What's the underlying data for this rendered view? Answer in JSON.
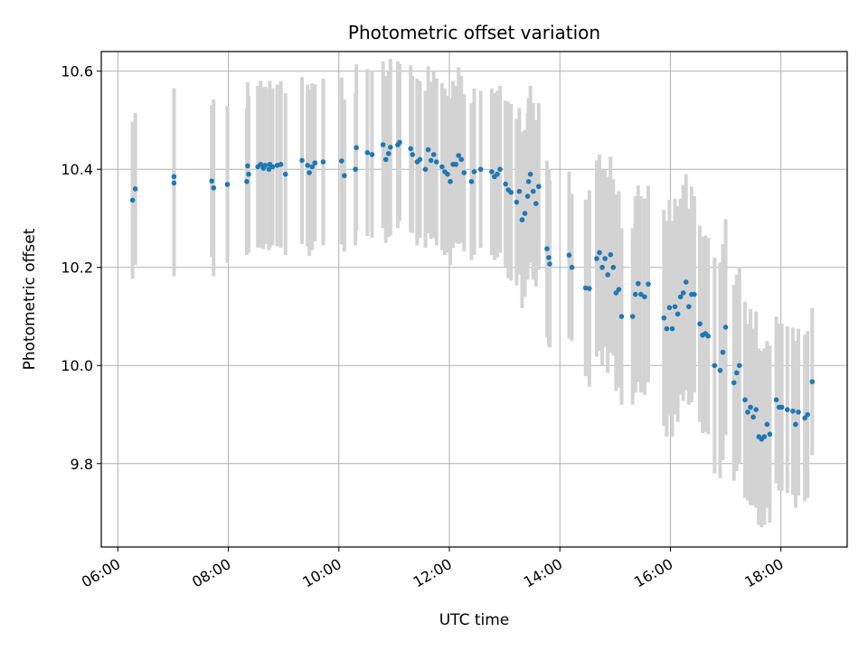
{
  "chart_data": {
    "type": "scatter",
    "title": "Photometric offset variation",
    "xlabel": "UTC time",
    "ylabel": "Photometric offset",
    "x_tick_labels": [
      "06:00",
      "08:00",
      "10:00",
      "12:00",
      "14:00",
      "16:00",
      "18:00"
    ],
    "x_tick_hours": [
      6,
      8,
      10,
      12,
      14,
      16,
      18
    ],
    "y_tick_labels": [
      "9.8",
      "10.0",
      "10.2",
      "10.4",
      "10.6"
    ],
    "y_tick_values": [
      9.8,
      10.0,
      10.2,
      10.4,
      10.6
    ],
    "xlim": [
      "05:42",
      "19:12"
    ],
    "ylim": [
      9.63,
      10.64
    ],
    "grid": true,
    "colors": {
      "point": "#1f77b4",
      "errorbar": "#d3d3d3",
      "grid": "#b0b0b0"
    },
    "points": [
      [
        "06:16",
        10.337,
        0.16
      ],
      [
        "06:19",
        10.36,
        0.155
      ],
      [
        "07:01",
        10.385,
        0.18
      ],
      [
        "07:01",
        10.372,
        0.19
      ],
      [
        "07:42",
        10.376,
        0.155
      ],
      [
        "07:44",
        10.362,
        0.18
      ],
      [
        "07:59",
        10.369,
        0.16
      ],
      [
        "08:20",
        10.375,
        0.15
      ],
      [
        "08:21",
        10.407,
        0.17
      ],
      [
        "08:22",
        10.39,
        0.16
      ],
      [
        "08:32",
        10.405,
        0.165
      ],
      [
        "08:35",
        10.41,
        0.17
      ],
      [
        "08:38",
        10.402,
        0.165
      ],
      [
        "08:40",
        10.408,
        0.16
      ],
      [
        "08:44",
        10.4,
        0.165
      ],
      [
        "08:45",
        10.41,
        0.17
      ],
      [
        "08:48",
        10.405,
        0.16
      ],
      [
        "08:53",
        10.408,
        0.165
      ],
      [
        "08:57",
        10.41,
        0.17
      ],
      [
        "09:02",
        10.39,
        0.165
      ],
      [
        "09:20",
        10.418,
        0.17
      ],
      [
        "09:26",
        10.408,
        0.165
      ],
      [
        "09:28",
        10.393,
        0.17
      ],
      [
        "09:31",
        10.405,
        0.17
      ],
      [
        "09:34",
        10.413,
        0.16
      ],
      [
        "09:43",
        10.415,
        0.17
      ],
      [
        "10:03",
        10.417,
        0.17
      ],
      [
        "10:06",
        10.387,
        0.155
      ],
      [
        "10:18",
        10.4,
        0.155
      ],
      [
        "10:19",
        10.444,
        0.17
      ],
      [
        "10:31",
        10.434,
        0.17
      ],
      [
        "10:36",
        10.43,
        0.17
      ],
      [
        "10:48",
        10.45,
        0.17
      ],
      [
        "10:51",
        10.42,
        0.17
      ],
      [
        "10:54",
        10.432,
        0.17
      ],
      [
        "10:56",
        10.445,
        0.18
      ],
      [
        "11:04",
        10.45,
        0.17
      ],
      [
        "11:06",
        10.455,
        0.16
      ],
      [
        "11:18",
        10.442,
        0.17
      ],
      [
        "11:20",
        10.43,
        0.16
      ],
      [
        "11:25",
        10.415,
        0.17
      ],
      [
        "11:28",
        10.42,
        0.16
      ],
      [
        "11:34",
        10.4,
        0.16
      ],
      [
        "11:37",
        10.44,
        0.17
      ],
      [
        "11:40",
        10.418,
        0.16
      ],
      [
        "11:43",
        10.43,
        0.17
      ],
      [
        "11:46",
        10.415,
        0.17
      ],
      [
        "11:52",
        10.405,
        0.17
      ],
      [
        "11:55",
        10.395,
        0.17
      ],
      [
        "11:58",
        10.39,
        0.16
      ],
      [
        "12:01",
        10.375,
        0.17
      ],
      [
        "12:04",
        10.41,
        0.17
      ],
      [
        "12:07",
        10.41,
        0.16
      ],
      [
        "12:10",
        10.428,
        0.18
      ],
      [
        "12:13",
        10.42,
        0.17
      ],
      [
        "12:16",
        10.393,
        0.16
      ],
      [
        "12:24",
        10.375,
        0.16
      ],
      [
        "12:27",
        10.395,
        0.17
      ],
      [
        "12:34",
        10.4,
        0.16
      ],
      [
        "12:46",
        10.395,
        0.17
      ],
      [
        "12:49",
        10.385,
        0.17
      ],
      [
        "12:52",
        10.39,
        0.17
      ],
      [
        "12:55",
        10.4,
        0.17
      ],
      [
        "13:01",
        10.37,
        0.17
      ],
      [
        "13:04",
        10.358,
        0.18
      ],
      [
        "13:07",
        10.353,
        0.18
      ],
      [
        "13:13",
        10.333,
        0.17
      ],
      [
        "13:16",
        10.355,
        0.17
      ],
      [
        "13:19",
        10.297,
        0.18
      ],
      [
        "13:22",
        10.31,
        0.17
      ],
      [
        "13:25",
        10.345,
        0.17
      ],
      [
        "13:26",
        10.375,
        0.17
      ],
      [
        "13:28",
        10.39,
        0.18
      ],
      [
        "13:31",
        10.355,
        0.18
      ],
      [
        "13:34",
        10.33,
        0.17
      ],
      [
        "13:37",
        10.365,
        0.17
      ],
      [
        "13:46",
        10.238,
        0.18
      ],
      [
        "13:48",
        10.22,
        0.18
      ],
      [
        "13:49",
        10.207,
        0.17
      ],
      [
        "14:10",
        10.225,
        0.17
      ],
      [
        "14:13",
        10.2,
        0.15
      ],
      [
        "14:28",
        10.158,
        0.18
      ],
      [
        "14:32",
        10.157,
        0.2
      ],
      [
        "14:40",
        10.218,
        0.2
      ],
      [
        "14:43",
        10.23,
        0.2
      ],
      [
        "14:46",
        10.2,
        0.2
      ],
      [
        "14:49",
        10.218,
        0.18
      ],
      [
        "14:52",
        10.185,
        0.2
      ],
      [
        "14:55",
        10.226,
        0.2
      ],
      [
        "14:58",
        10.2,
        0.18
      ],
      [
        "15:01",
        10.148,
        0.2
      ],
      [
        "15:04",
        10.155,
        0.2
      ],
      [
        "15:07",
        10.1,
        0.18
      ],
      [
        "15:19",
        10.1,
        0.18
      ],
      [
        "15:22",
        10.145,
        0.2
      ],
      [
        "15:25",
        10.167,
        0.2
      ],
      [
        "15:28",
        10.145,
        0.2
      ],
      [
        "15:32",
        10.14,
        0.2
      ],
      [
        "15:36",
        10.166,
        0.2
      ],
      [
        "15:53",
        10.097,
        0.22
      ],
      [
        "15:56",
        10.075,
        0.22
      ],
      [
        "15:59",
        10.118,
        0.22
      ],
      [
        "16:02",
        10.075,
        0.22
      ],
      [
        "16:05",
        10.12,
        0.22
      ],
      [
        "16:08",
        10.105,
        0.22
      ],
      [
        "16:11",
        10.14,
        0.2
      ],
      [
        "16:14",
        10.148,
        0.22
      ],
      [
        "16:17",
        10.17,
        0.22
      ],
      [
        "16:20",
        10.12,
        0.2
      ],
      [
        "16:23",
        10.145,
        0.22
      ],
      [
        "16:26",
        10.145,
        0.2
      ],
      [
        "16:32",
        10.085,
        0.2
      ],
      [
        "16:35",
        10.062,
        0.2
      ],
      [
        "16:38",
        10.065,
        0.2
      ],
      [
        "16:41",
        10.06,
        0.2
      ],
      [
        "16:48",
        10.0,
        0.22
      ],
      [
        "16:54",
        9.99,
        0.22
      ],
      [
        "16:57",
        10.027,
        0.22
      ],
      [
        "17:00",
        10.078,
        0.22
      ],
      [
        "17:09",
        9.965,
        0.2
      ],
      [
        "17:12",
        9.985,
        0.2
      ],
      [
        "17:15",
        10.0,
        0.2
      ],
      [
        "17:21",
        9.93,
        0.2
      ],
      [
        "17:24",
        9.905,
        0.18
      ],
      [
        "17:27",
        9.915,
        0.2
      ],
      [
        "17:30",
        9.895,
        0.18
      ],
      [
        "17:33",
        9.91,
        0.2
      ],
      [
        "17:36",
        9.855,
        0.18
      ],
      [
        "17:39",
        9.85,
        0.18
      ],
      [
        "17:42",
        9.855,
        0.18
      ],
      [
        "17:45",
        9.88,
        0.17
      ],
      [
        "17:48",
        9.86,
        0.18
      ],
      [
        "17:55",
        9.93,
        0.17
      ],
      [
        "17:58",
        9.915,
        0.17
      ],
      [
        "18:01",
        9.915,
        0.17
      ],
      [
        "18:07",
        9.91,
        0.17
      ],
      [
        "18:13",
        9.907,
        0.17
      ],
      [
        "18:16",
        9.88,
        0.17
      ],
      [
        "18:19",
        9.905,
        0.17
      ],
      [
        "18:26",
        9.893,
        0.17
      ],
      [
        "18:29",
        9.9,
        0.17
      ],
      [
        "18:34",
        9.967,
        0.15
      ]
    ]
  }
}
